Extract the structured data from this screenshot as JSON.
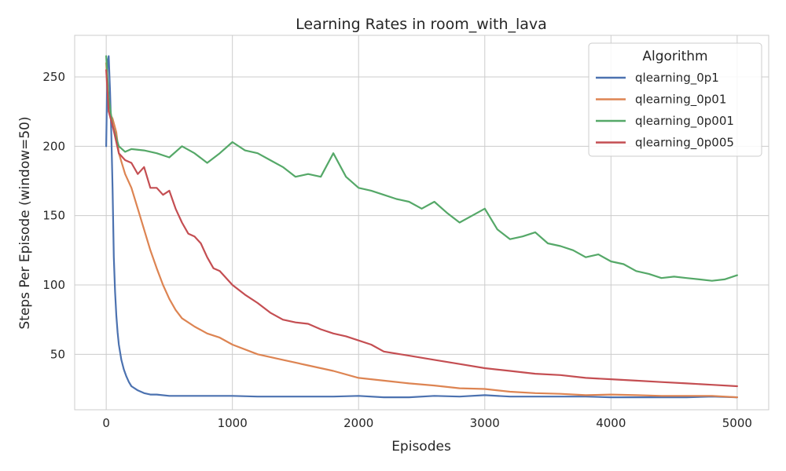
{
  "chart_data": {
    "type": "line",
    "title": "Learning Rates in room_with_lava",
    "xlabel": "Episodes",
    "ylabel": "Steps Per Episode (window=50)",
    "xlim": [
      -250,
      5250
    ],
    "ylim": [
      10,
      280
    ],
    "xticks": [
      0,
      1000,
      2000,
      3000,
      4000,
      5000
    ],
    "yticks": [
      50,
      100,
      150,
      200,
      250
    ],
    "grid": true,
    "legend": {
      "title": "Algorithm",
      "placement": "top-right"
    },
    "series": [
      {
        "name": "qlearning_0p1",
        "color": "#4c72b0",
        "x": [
          0,
          10,
          20,
          30,
          40,
          50,
          60,
          70,
          80,
          90,
          100,
          120,
          140,
          160,
          180,
          200,
          250,
          300,
          350,
          400,
          500,
          600,
          700,
          800,
          900,
          1000,
          1200,
          1400,
          1600,
          1800,
          2000,
          2200,
          2400,
          2600,
          2800,
          3000,
          3200,
          3400,
          3600,
          3800,
          4000,
          4200,
          4400,
          4600,
          4800,
          5000
        ],
        "y": [
          200,
          260,
          265,
          240,
          210,
          170,
          120,
          95,
          78,
          66,
          57,
          46,
          39,
          34,
          30,
          27,
          24,
          22,
          21,
          21,
          20,
          20,
          20,
          20,
          20,
          20,
          19.5,
          19.5,
          19.5,
          19.5,
          20,
          19,
          19,
          20,
          19.5,
          20.5,
          19.5,
          19.5,
          19.5,
          19.5,
          19,
          19,
          19,
          19,
          19.5,
          19
        ]
      },
      {
        "name": "qlearning_0p01",
        "color": "#dd8452",
        "x": [
          0,
          20,
          50,
          80,
          100,
          150,
          200,
          250,
          300,
          350,
          400,
          450,
          500,
          550,
          600,
          700,
          800,
          900,
          1000,
          1200,
          1400,
          1600,
          1800,
          2000,
          2200,
          2400,
          2600,
          2800,
          3000,
          3200,
          3400,
          3600,
          3800,
          4000,
          4200,
          4400,
          4600,
          4800,
          5000
        ],
        "y": [
          260,
          225,
          220,
          210,
          195,
          180,
          170,
          155,
          140,
          125,
          112,
          100,
          90,
          82,
          76,
          70,
          65,
          62,
          57,
          50,
          46,
          42,
          38,
          33,
          31,
          29,
          27.5,
          25.5,
          25,
          23,
          22,
          21.5,
          20.5,
          21,
          20.5,
          20,
          20,
          20,
          19
        ]
      },
      {
        "name": "qlearning_0p001",
        "color": "#55a868",
        "x": [
          0,
          20,
          50,
          100,
          150,
          200,
          300,
          400,
          500,
          600,
          700,
          800,
          900,
          1000,
          1100,
          1200,
          1300,
          1400,
          1500,
          1600,
          1700,
          1800,
          1900,
          2000,
          2100,
          2200,
          2300,
          2400,
          2500,
          2600,
          2700,
          2800,
          2900,
          3000,
          3100,
          3200,
          3300,
          3400,
          3500,
          3600,
          3700,
          3800,
          3900,
          4000,
          4100,
          4200,
          4300,
          4400,
          4500,
          4600,
          4700,
          4800,
          4900,
          5000
        ],
        "y": [
          265,
          235,
          215,
          200,
          196,
          198,
          197,
          195,
          192,
          200,
          195,
          188,
          195,
          203,
          197,
          195,
          190,
          185,
          178,
          180,
          178,
          195,
          178,
          170,
          168,
          165,
          162,
          160,
          155,
          160,
          152,
          145,
          150,
          155,
          140,
          133,
          135,
          138,
          130,
          128,
          125,
          120,
          122,
          117,
          115,
          110,
          108,
          105,
          106,
          105,
          104,
          103,
          104,
          107
        ]
      },
      {
        "name": "qlearning_0p005",
        "color": "#c44e52",
        "x": [
          0,
          20,
          50,
          100,
          150,
          200,
          250,
          300,
          350,
          400,
          450,
          500,
          550,
          600,
          650,
          700,
          750,
          800,
          850,
          900,
          1000,
          1100,
          1200,
          1300,
          1400,
          1500,
          1600,
          1700,
          1800,
          1900,
          2000,
          2100,
          2200,
          2400,
          2600,
          2800,
          3000,
          3200,
          3400,
          3600,
          3800,
          4000,
          4200,
          4400,
          4600,
          4800,
          5000
        ],
        "y": [
          255,
          225,
          215,
          195,
          190,
          188,
          180,
          185,
          170,
          170,
          165,
          168,
          155,
          145,
          137,
          135,
          130,
          120,
          112,
          110,
          100,
          93,
          87,
          80,
          75,
          73,
          72,
          68,
          65,
          63,
          60,
          57,
          52,
          49,
          46,
          43,
          40,
          38,
          36,
          35,
          33,
          32,
          31,
          30,
          29,
          28,
          27
        ]
      }
    ]
  }
}
